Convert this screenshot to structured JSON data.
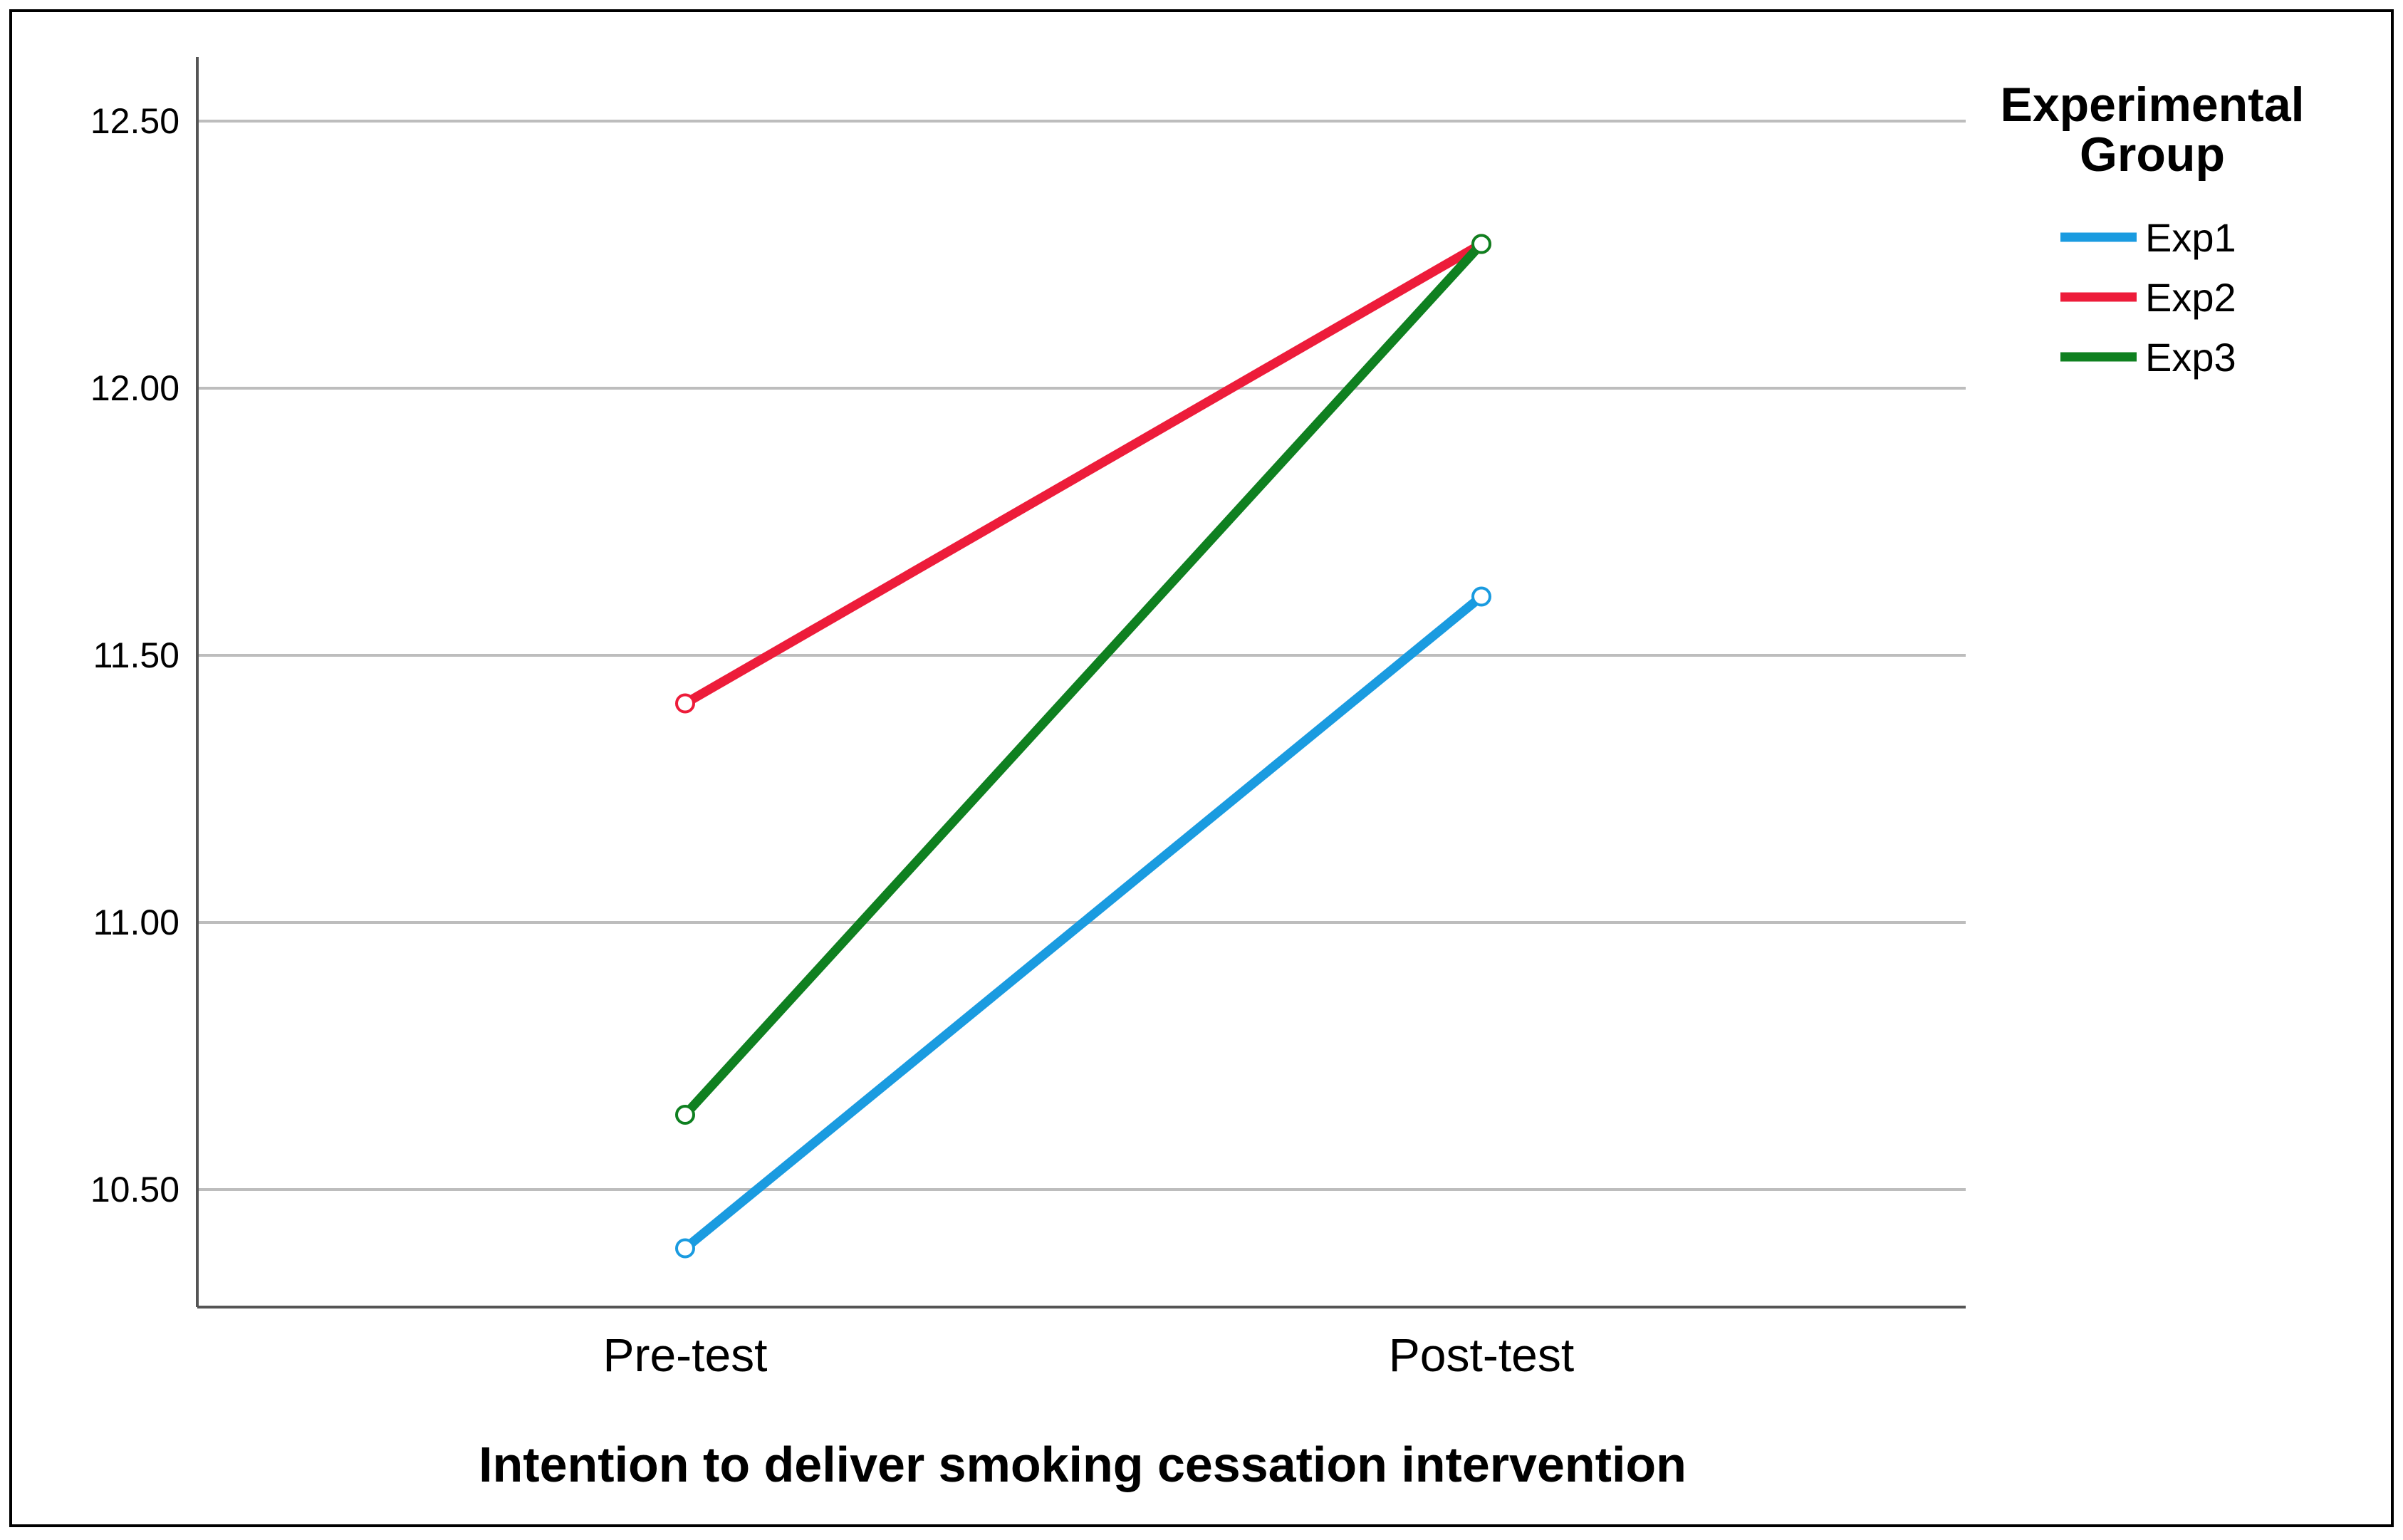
{
  "chart_data": {
    "type": "line",
    "categories": [
      "Pre-test",
      "Post-test"
    ],
    "series": [
      {
        "name": "Exp1",
        "color": "#1a9be0",
        "values": [
          10.39,
          11.61
        ]
      },
      {
        "name": "Exp2",
        "color": "#ed1c3a",
        "values": [
          11.41,
          12.27
        ]
      },
      {
        "name": "Exp3",
        "color": "#0f8020",
        "values": [
          10.64,
          12.27
        ]
      }
    ],
    "xlabel": "Intention to deliver smoking cessation intervention",
    "ylabel": "",
    "ylim": [
      10.28,
      12.62
    ],
    "yticks": [
      10.5,
      11.0,
      11.5,
      12.0,
      12.5
    ],
    "ytick_labels": [
      "10.50",
      "11.00",
      "11.50",
      "12.00",
      "12.50"
    ],
    "grid": "horizontal",
    "markers": "open-circle",
    "legend": {
      "title_lines": [
        "Experimental",
        "Group"
      ],
      "position": "top-right"
    }
  }
}
